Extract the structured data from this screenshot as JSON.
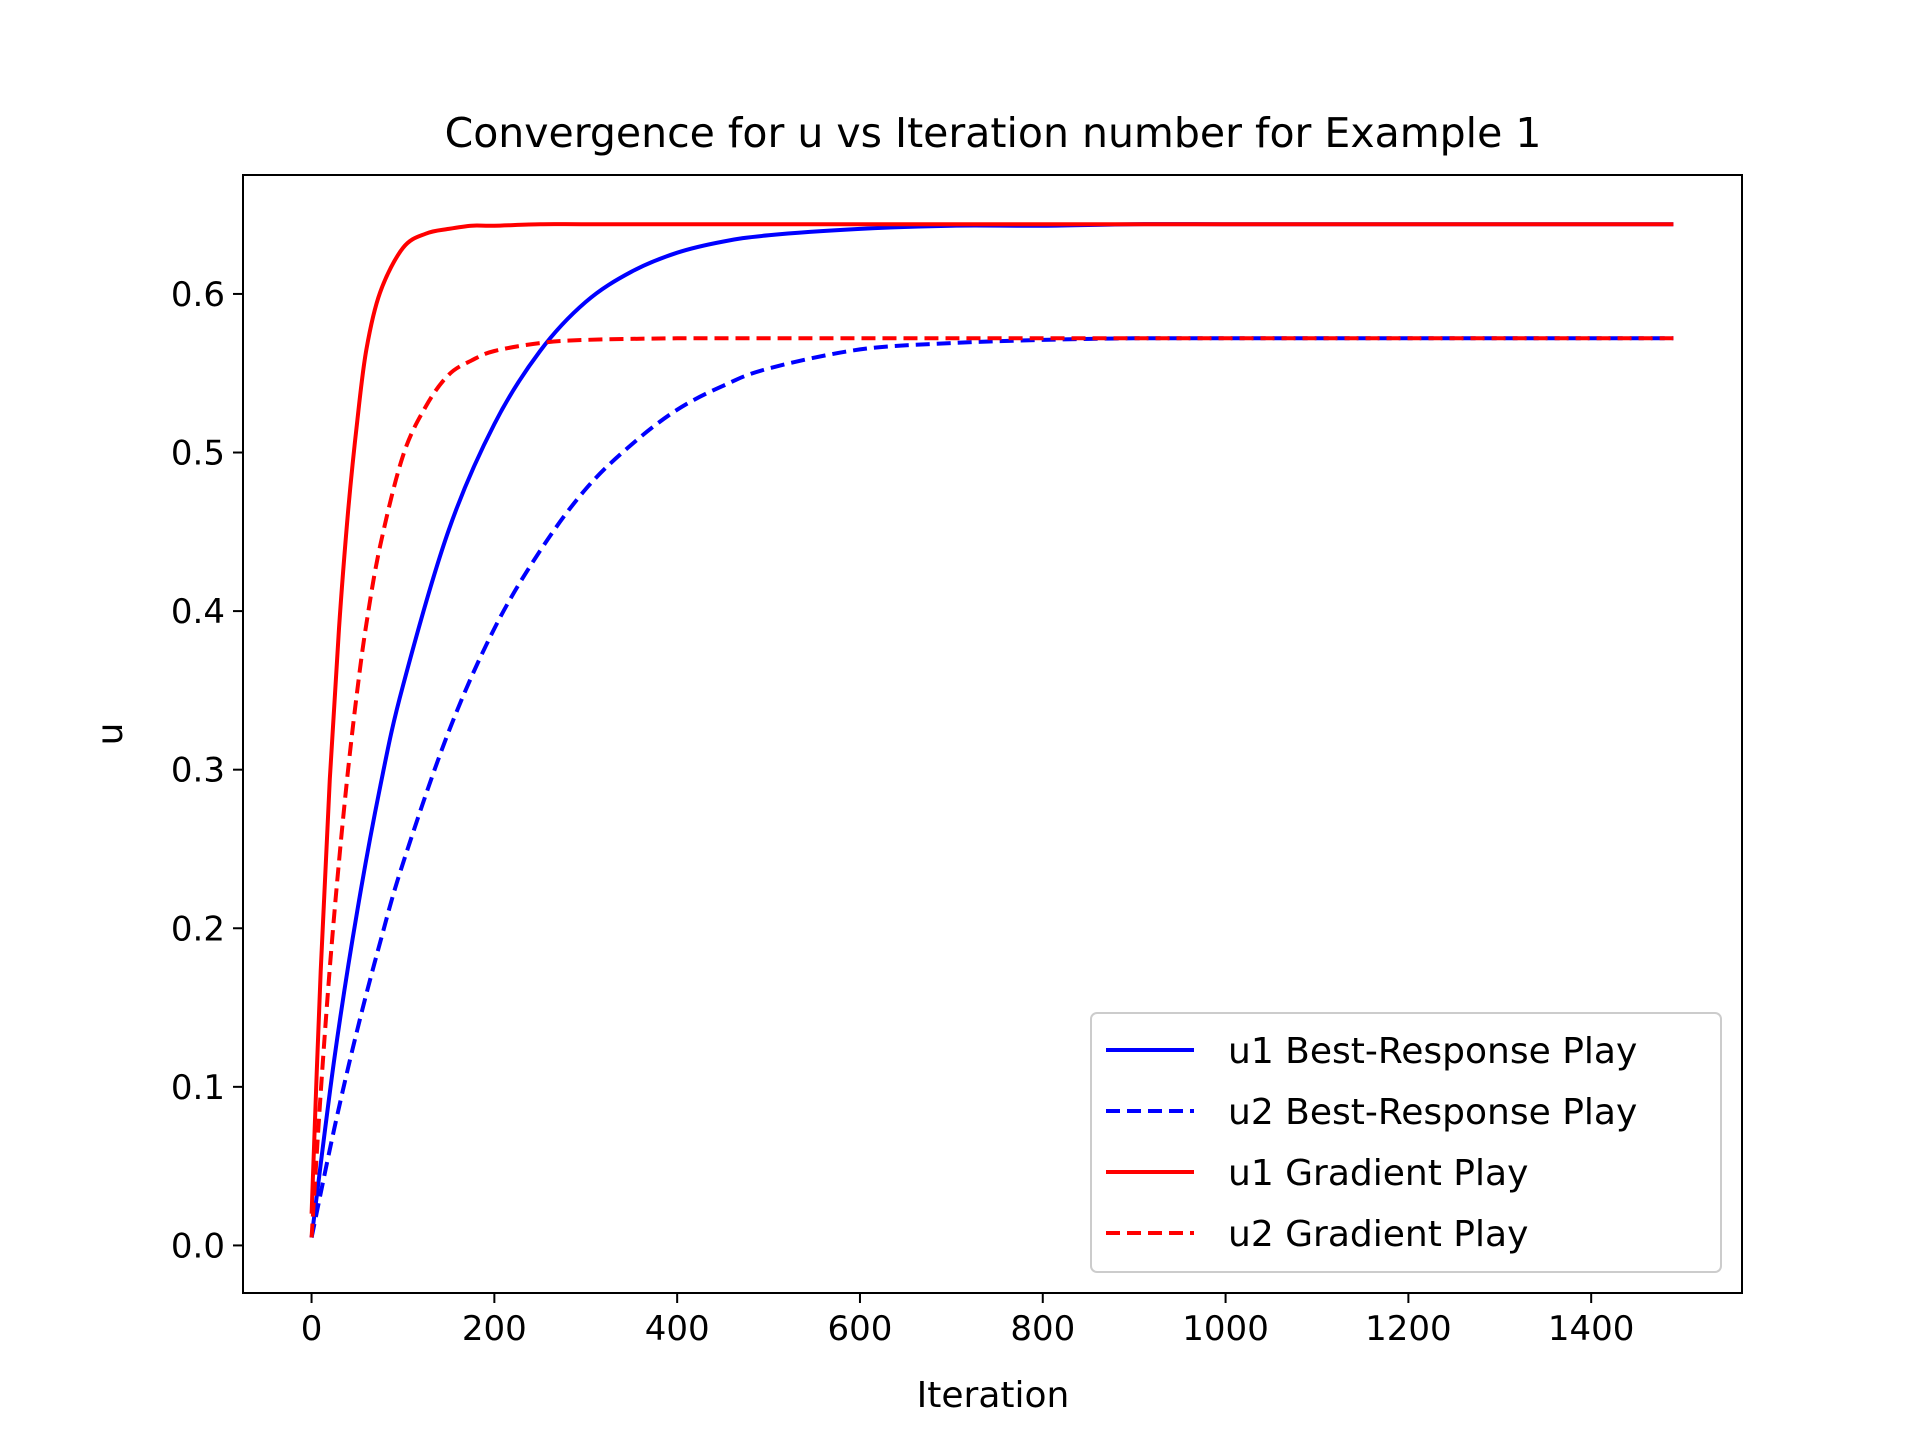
{
  "chart_data": {
    "type": "line",
    "title": "Convergence for u vs Iteration number for Example 1",
    "xlabel": "Iteration",
    "ylabel": "u",
    "xlim": [
      -75,
      1565
    ],
    "ylim": [
      -0.03,
      0.675
    ],
    "xticks": [
      0,
      200,
      400,
      600,
      800,
      1000,
      1200,
      1400
    ],
    "xtick_labels": [
      "0",
      "200",
      "400",
      "600",
      "800",
      "1000",
      "1200",
      "1400"
    ],
    "yticks": [
      0.0,
      0.1,
      0.2,
      0.3,
      0.4,
      0.5,
      0.6
    ],
    "ytick_labels": [
      "0.0",
      "0.1",
      "0.2",
      "0.3",
      "0.4",
      "0.5",
      "0.6"
    ],
    "grid": false,
    "legend_position": "lower-right",
    "series": [
      {
        "name": "u1 Best-Response Play",
        "color": "#0000ff",
        "style": "solid",
        "x": [
          0,
          25,
          50,
          75,
          100,
          150,
          200,
          250,
          300,
          350,
          400,
          450,
          500,
          600,
          700,
          800,
          900,
          1000,
          1100,
          1200,
          1300,
          1400,
          1490
        ],
        "y": [
          0.005,
          0.118,
          0.211,
          0.289,
          0.353,
          0.451,
          0.518,
          0.564,
          0.595,
          0.614,
          0.626,
          0.633,
          0.637,
          0.641,
          0.643,
          0.643,
          0.644,
          0.644,
          0.644,
          0.644,
          0.644,
          0.644,
          0.644
        ]
      },
      {
        "name": "u2 Best-Response Play",
        "color": "#0000ff",
        "style": "dashed",
        "x": [
          0,
          25,
          50,
          75,
          100,
          150,
          200,
          250,
          300,
          350,
          400,
          450,
          500,
          600,
          700,
          800,
          900,
          1000,
          1100,
          1200,
          1300,
          1400,
          1490
        ],
        "y": [
          0.005,
          0.074,
          0.136,
          0.191,
          0.241,
          0.324,
          0.389,
          0.438,
          0.477,
          0.505,
          0.527,
          0.542,
          0.553,
          0.565,
          0.569,
          0.571,
          0.572,
          0.572,
          0.572,
          0.572,
          0.572,
          0.572,
          0.572
        ]
      },
      {
        "name": "u1 Gradient Play",
        "color": "#ff0000",
        "style": "solid",
        "x": [
          0,
          10,
          20,
          30,
          40,
          50,
          60,
          75,
          100,
          125,
          150,
          175,
          200,
          250,
          300,
          400,
          500,
          600,
          800,
          1000,
          1200,
          1400,
          1490
        ],
        "y": [
          0.02,
          0.173,
          0.294,
          0.389,
          0.463,
          0.52,
          0.565,
          0.601,
          0.629,
          0.638,
          0.641,
          0.643,
          0.643,
          0.644,
          0.644,
          0.644,
          0.644,
          0.644,
          0.644,
          0.644,
          0.644,
          0.644,
          0.644
        ]
      },
      {
        "name": "u2 Gradient Play",
        "color": "#ff0000",
        "style": "dashed",
        "x": [
          0,
          10,
          20,
          30,
          40,
          50,
          60,
          75,
          100,
          125,
          150,
          175,
          200,
          250,
          300,
          400,
          500,
          600,
          800,
          1000,
          1200,
          1400,
          1490
        ],
        "y": [
          0.005,
          0.096,
          0.175,
          0.242,
          0.3,
          0.35,
          0.392,
          0.441,
          0.498,
          0.529,
          0.549,
          0.558,
          0.564,
          0.569,
          0.571,
          0.572,
          0.572,
          0.572,
          0.572,
          0.572,
          0.572,
          0.572,
          0.572
        ]
      }
    ]
  }
}
